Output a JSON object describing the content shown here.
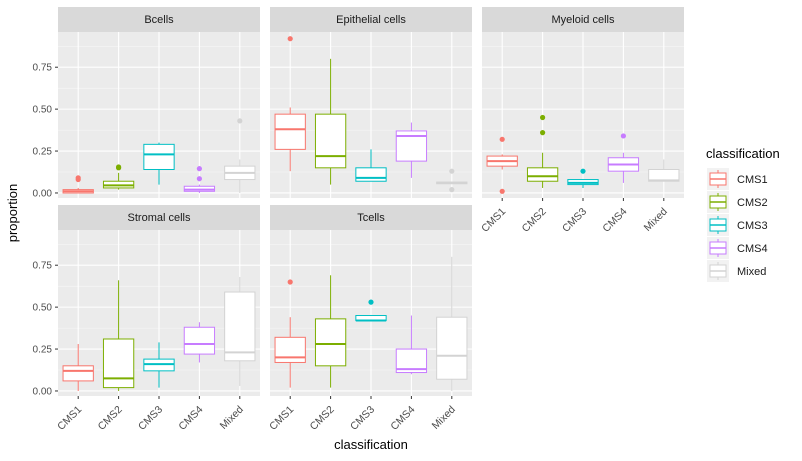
{
  "chart_data": {
    "type": "boxplot",
    "xlabel": "classification",
    "ylabel": "proportion",
    "ylim": [
      -0.03,
      0.96
    ],
    "yticks": [
      0.0,
      0.25,
      0.5,
      0.75
    ],
    "ytick_labels": [
      "0.00",
      "0.25",
      "0.50",
      "0.75"
    ],
    "grid": true,
    "categories": [
      "CMS1",
      "CMS2",
      "CMS3",
      "CMS4",
      "Mixed"
    ],
    "legend": {
      "title": "classification",
      "position": "right",
      "entries": [
        "CMS1",
        "CMS2",
        "CMS3",
        "CMS4",
        "Mixed"
      ]
    },
    "colors": {
      "CMS1": "#F8766D",
      "CMS2": "#7CAE00",
      "CMS3": "#00BFC4",
      "CMS4": "#C77CFF",
      "Mixed": "#D3D3D3",
      "panel_bg": "#EBEBEB",
      "strip_bg": "#D9D9D9",
      "grid": "#FFFFFF"
    },
    "panels": [
      {
        "title": "Bcells",
        "boxes": [
          {
            "category": "CMS1",
            "q1": 0.0,
            "median": 0.01,
            "q3": 0.02,
            "whisker_low": 0.0,
            "whisker_high": 0.03,
            "outliers": [
              0.08,
              0.09
            ]
          },
          {
            "category": "CMS2",
            "q1": 0.03,
            "median": 0.045,
            "q3": 0.07,
            "whisker_low": 0.02,
            "whisker_high": 0.12,
            "outliers": [
              0.15,
              0.155
            ]
          },
          {
            "category": "CMS3",
            "q1": 0.14,
            "median": 0.23,
            "q3": 0.29,
            "whisker_low": 0.05,
            "whisker_high": 0.3,
            "outliers": []
          },
          {
            "category": "CMS4",
            "q1": 0.01,
            "median": 0.02,
            "q3": 0.04,
            "whisker_low": 0.0,
            "whisker_high": 0.05,
            "outliers": [
              0.085,
              0.145
            ]
          },
          {
            "category": "Mixed",
            "q1": 0.08,
            "median": 0.12,
            "q3": 0.16,
            "whisker_low": 0.0,
            "whisker_high": 0.2,
            "outliers": [
              0.43
            ]
          }
        ]
      },
      {
        "title": "Epithelial cells",
        "boxes": [
          {
            "category": "CMS1",
            "q1": 0.26,
            "median": 0.38,
            "q3": 0.47,
            "whisker_low": 0.13,
            "whisker_high": 0.51,
            "outliers": [
              0.92
            ]
          },
          {
            "category": "CMS2",
            "q1": 0.15,
            "median": 0.22,
            "q3": 0.47,
            "whisker_low": 0.05,
            "whisker_high": 0.8,
            "outliers": []
          },
          {
            "category": "CMS3",
            "q1": 0.07,
            "median": 0.09,
            "q3": 0.15,
            "whisker_low": 0.07,
            "whisker_high": 0.26,
            "outliers": []
          },
          {
            "category": "CMS4",
            "q1": 0.19,
            "median": 0.34,
            "q3": 0.37,
            "whisker_low": 0.09,
            "whisker_high": 0.42,
            "outliers": []
          },
          {
            "category": "Mixed",
            "q1": 0.055,
            "median": 0.06,
            "q3": 0.065,
            "whisker_low": 0.055,
            "whisker_high": 0.065,
            "outliers": [
              0.02,
              0.13
            ]
          }
        ]
      },
      {
        "title": "Myeloid cells",
        "boxes": [
          {
            "category": "CMS1",
            "q1": 0.16,
            "median": 0.19,
            "q3": 0.22,
            "whisker_low": 0.14,
            "whisker_high": 0.23,
            "outliers": [
              0.01,
              0.32
            ]
          },
          {
            "category": "CMS2",
            "q1": 0.07,
            "median": 0.1,
            "q3": 0.15,
            "whisker_low": 0.03,
            "whisker_high": 0.24,
            "outliers": [
              0.36,
              0.45
            ]
          },
          {
            "category": "CMS3",
            "q1": 0.05,
            "median": 0.06,
            "q3": 0.08,
            "whisker_low": 0.03,
            "whisker_high": 0.08,
            "outliers": [
              0.13
            ]
          },
          {
            "category": "CMS4",
            "q1": 0.13,
            "median": 0.17,
            "q3": 0.21,
            "whisker_low": 0.06,
            "whisker_high": 0.24,
            "outliers": [
              0.34
            ]
          },
          {
            "category": "Mixed",
            "q1": 0.07,
            "median": 0.075,
            "q3": 0.14,
            "whisker_low": 0.07,
            "whisker_high": 0.2,
            "outliers": []
          }
        ]
      },
      {
        "title": "Stromal cells",
        "boxes": [
          {
            "category": "CMS1",
            "q1": 0.06,
            "median": 0.12,
            "q3": 0.15,
            "whisker_low": 0.0,
            "whisker_high": 0.28,
            "outliers": []
          },
          {
            "category": "CMS2",
            "q1": 0.02,
            "median": 0.075,
            "q3": 0.31,
            "whisker_low": 0.0,
            "whisker_high": 0.66,
            "outliers": []
          },
          {
            "category": "CMS3",
            "q1": 0.12,
            "median": 0.16,
            "q3": 0.19,
            "whisker_low": 0.02,
            "whisker_high": 0.29,
            "outliers": []
          },
          {
            "category": "CMS4",
            "q1": 0.22,
            "median": 0.28,
            "q3": 0.38,
            "whisker_low": 0.17,
            "whisker_high": 0.41,
            "outliers": []
          },
          {
            "category": "Mixed",
            "q1": 0.18,
            "median": 0.23,
            "q3": 0.59,
            "whisker_low": 0.03,
            "whisker_high": 0.68,
            "outliers": []
          }
        ]
      },
      {
        "title": "Tcells",
        "boxes": [
          {
            "category": "CMS1",
            "q1": 0.17,
            "median": 0.2,
            "q3": 0.32,
            "whisker_low": 0.02,
            "whisker_high": 0.44,
            "outliers": [
              0.65
            ]
          },
          {
            "category": "CMS2",
            "q1": 0.15,
            "median": 0.28,
            "q3": 0.43,
            "whisker_low": 0.02,
            "whisker_high": 0.69,
            "outliers": []
          },
          {
            "category": "CMS3",
            "q1": 0.42,
            "median": 0.42,
            "q3": 0.45,
            "whisker_low": 0.42,
            "whisker_high": 0.45,
            "outliers": [
              0.53
            ]
          },
          {
            "category": "CMS4",
            "q1": 0.11,
            "median": 0.13,
            "q3": 0.25,
            "whisker_low": 0.1,
            "whisker_high": 0.45,
            "outliers": []
          },
          {
            "category": "Mixed",
            "q1": 0.07,
            "median": 0.21,
            "q3": 0.44,
            "whisker_low": 0.0,
            "whisker_high": 0.8,
            "outliers": []
          }
        ]
      }
    ]
  }
}
